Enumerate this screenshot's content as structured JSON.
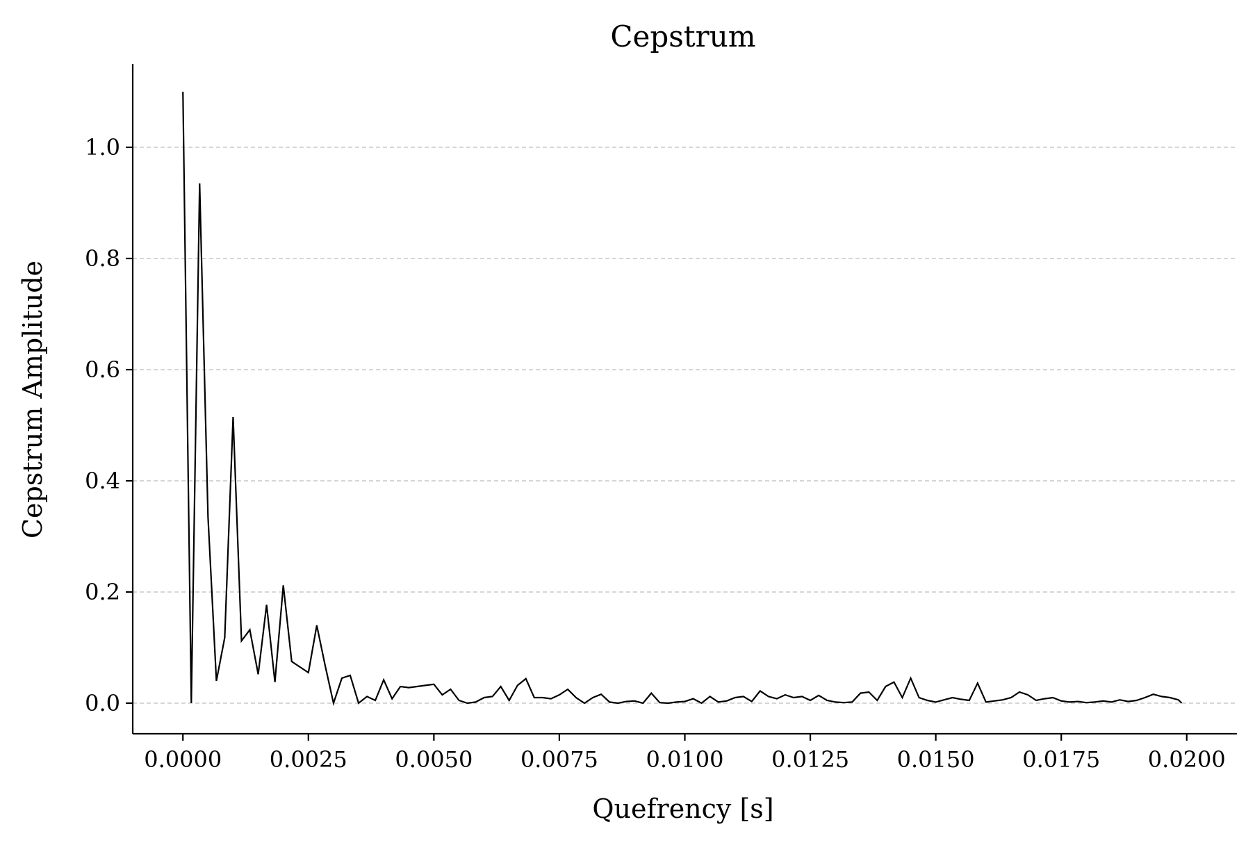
{
  "chart_data": {
    "type": "line",
    "title": "Cepstrum",
    "xlabel": "Quefrency [s]",
    "ylabel": "Cepstrum Amplitude",
    "xlim": [
      -0.001,
      0.021
    ],
    "ylim": [
      -0.055,
      1.15
    ],
    "x_ticks": [
      0.0,
      0.0025,
      0.005,
      0.0075,
      0.01,
      0.0125,
      0.015,
      0.0175,
      0.02
    ],
    "x_tick_labels": [
      "0.0000",
      "0.0025",
      "0.0050",
      "0.0075",
      "0.0100",
      "0.0125",
      "0.0150",
      "0.0175",
      "0.0200"
    ],
    "y_ticks": [
      0.0,
      0.2,
      0.4,
      0.6,
      0.8,
      1.0
    ],
    "y_tick_labels": [
      "0.0",
      "0.2",
      "0.4",
      "0.6",
      "0.8",
      "1.0"
    ],
    "grid": "y-dashed",
    "series": [
      {
        "color": "#000000",
        "x": [
          0.0,
          0.000167,
          0.000333,
          0.0005,
          0.000667,
          0.000833,
          0.001,
          0.001167,
          0.001333,
          0.0015,
          0.001667,
          0.001833,
          0.002,
          0.002167,
          0.002333,
          0.0025,
          0.002667,
          0.002833,
          0.003,
          0.003167,
          0.003333,
          0.0035,
          0.003667,
          0.003833,
          0.004,
          0.004167,
          0.004333,
          0.0045,
          0.004667,
          0.004833,
          0.005,
          0.005167,
          0.005333,
          0.0055,
          0.005667,
          0.005833,
          0.006,
          0.006167,
          0.006333,
          0.0065,
          0.006667,
          0.006833,
          0.007,
          0.007167,
          0.007333,
          0.0075,
          0.007667,
          0.007833,
          0.008,
          0.008167,
          0.008333,
          0.0085,
          0.008667,
          0.008833,
          0.009,
          0.009167,
          0.009333,
          0.0095,
          0.009667,
          0.009833,
          0.01,
          0.010167,
          0.010333,
          0.0105,
          0.010667,
          0.010833,
          0.011,
          0.011167,
          0.011333,
          0.0115,
          0.011667,
          0.011833,
          0.012,
          0.012167,
          0.012333,
          0.0125,
          0.012667,
          0.012833,
          0.013,
          0.013167,
          0.013333,
          0.0135,
          0.013667,
          0.013833,
          0.014,
          0.014167,
          0.014333,
          0.0145,
          0.014667,
          0.014833,
          0.015,
          0.015167,
          0.015333,
          0.0155,
          0.015667,
          0.015833,
          0.016,
          0.016167,
          0.016333,
          0.0165,
          0.016667,
          0.016833,
          0.017,
          0.017167,
          0.017333,
          0.0175,
          0.017667,
          0.017833,
          0.018,
          0.018167,
          0.018333,
          0.0185,
          0.018667,
          0.018833,
          0.019,
          0.019167,
          0.019333,
          0.0195,
          0.019667,
          0.019833,
          0.0199
        ],
        "y": [
          1.1,
          0.0,
          0.935,
          0.335,
          0.04,
          0.118,
          0.515,
          0.112,
          0.132,
          0.052,
          0.177,
          0.038,
          0.212,
          0.075,
          0.065,
          0.055,
          0.14,
          0.068,
          0.0,
          0.045,
          0.05,
          0.0,
          0.012,
          0.005,
          0.042,
          0.008,
          0.03,
          0.028,
          0.03,
          0.032,
          0.034,
          0.015,
          0.025,
          0.005,
          0.0,
          0.002,
          0.01,
          0.012,
          0.03,
          0.005,
          0.032,
          0.044,
          0.01,
          0.01,
          0.008,
          0.015,
          0.025,
          0.01,
          0.0,
          0.01,
          0.016,
          0.002,
          0.0,
          0.003,
          0.004,
          0.0,
          0.018,
          0.001,
          0.0,
          0.002,
          0.003,
          0.008,
          0.0,
          0.012,
          0.002,
          0.004,
          0.01,
          0.012,
          0.003,
          0.022,
          0.012,
          0.008,
          0.015,
          0.01,
          0.012,
          0.005,
          0.014,
          0.005,
          0.002,
          0.001,
          0.002,
          0.018,
          0.02,
          0.005,
          0.03,
          0.038,
          0.01,
          0.045,
          0.01,
          0.005,
          0.002,
          0.006,
          0.01,
          0.007,
          0.005,
          0.036,
          0.002,
          0.004,
          0.006,
          0.01,
          0.02,
          0.015,
          0.005,
          0.008,
          0.01,
          0.004,
          0.002,
          0.003,
          0.001,
          0.002,
          0.004,
          0.002,
          0.006,
          0.003,
          0.005,
          0.01,
          0.016,
          0.012,
          0.01,
          0.006,
          0.0
        ]
      }
    ]
  }
}
